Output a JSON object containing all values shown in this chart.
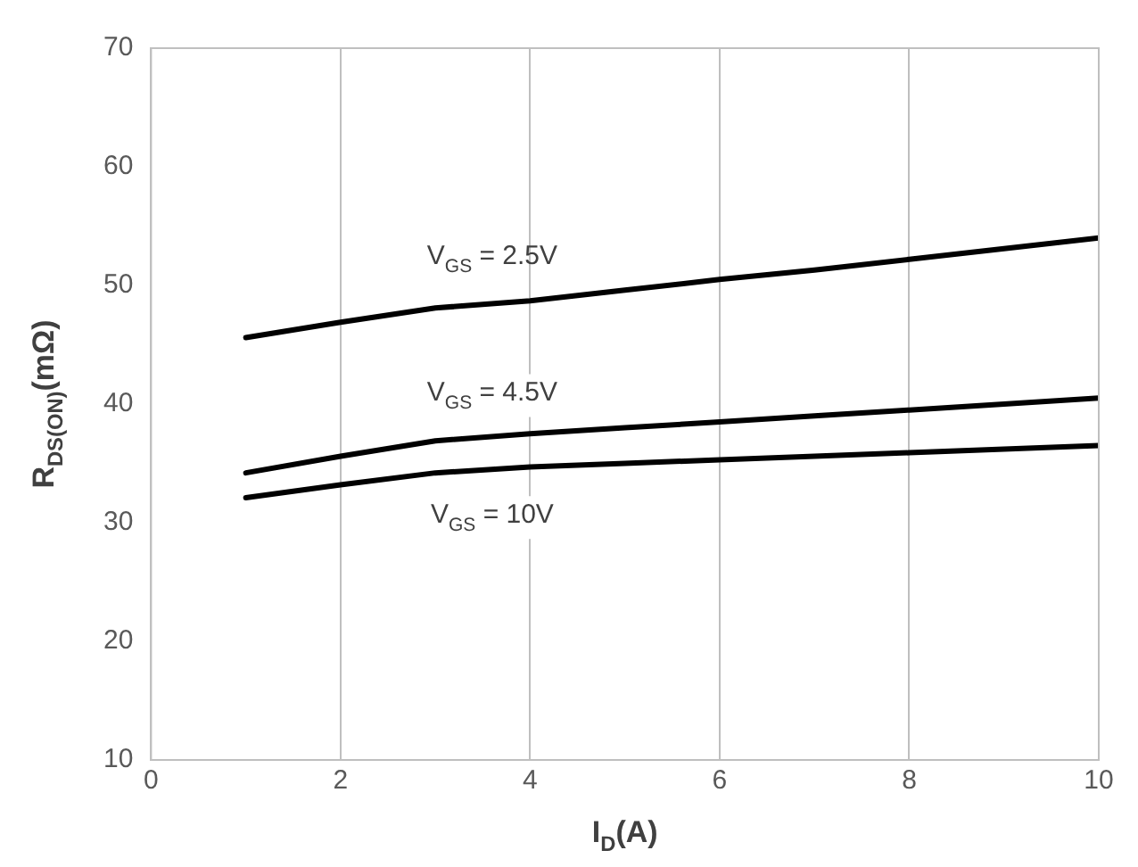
{
  "chart_data": {
    "type": "line",
    "xlabel": "I$_{D}$(A)",
    "ylabel": "R$_{DS(ON)}$(mΩ)",
    "xlim": [
      0,
      10
    ],
    "xticks": [
      0,
      2,
      4,
      6,
      8,
      10
    ],
    "ylim": [
      10,
      70
    ],
    "yticks": [
      10,
      20,
      30,
      40,
      50,
      60,
      70
    ],
    "grid": "x",
    "legend": false,
    "marker": "none",
    "line_style": "solid",
    "series": [
      {
        "name": "V$_{GS}$ = 2.5V",
        "color": "#000000",
        "x": [
          1,
          2,
          3,
          4,
          5,
          6,
          7,
          8,
          9,
          10
        ],
        "values": [
          45.6,
          46.9,
          48.1,
          48.7,
          49.6,
          50.5,
          51.3,
          52.2,
          53.1,
          54
        ]
      },
      {
        "name": "V$_{GS}$ = 4.5V",
        "color": "#000000",
        "x": [
          1,
          2,
          3,
          4,
          5,
          6,
          7,
          8,
          9,
          10
        ],
        "values": [
          34.2,
          35.6,
          36.9,
          37.5,
          38,
          38.5,
          39,
          39.5,
          40,
          40.5
        ]
      },
      {
        "name": "V$_{GS}$ = 10V",
        "color": "#000000",
        "x": [
          1,
          2,
          3,
          4,
          5,
          6,
          7,
          8,
          9,
          10
        ],
        "values": [
          32.1,
          33.2,
          34.2,
          34.7,
          35,
          35.3,
          35.6,
          35.9,
          36.2,
          36.5
        ]
      }
    ]
  }
}
